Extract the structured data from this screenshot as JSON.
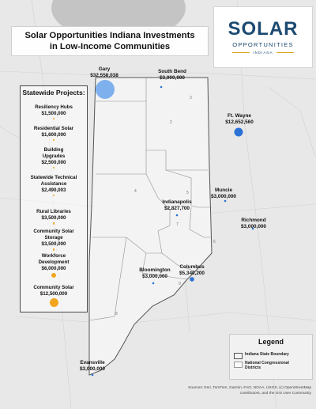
{
  "title": {
    "line1": "Solar Opportunities Indiana Investments",
    "line2": "in Low-Income Communities"
  },
  "logo": {
    "word1": "SOLAR",
    "word2": "OPPORTUNITIES",
    "word3": "INDIANA",
    "color": "#1c4a72",
    "accent": "#d9a21e"
  },
  "statewide": {
    "title": "Statewide Projects:",
    "projects": [
      {
        "name": "Resiliency Hubs",
        "amount": "$1,500,000",
        "value": 1500000
      },
      {
        "name": "Residential Solar",
        "amount": "$1,600,000",
        "value": 1600000
      },
      {
        "name": "Building Upgrades",
        "amount": "$2,500,000",
        "value": 2500000
      },
      {
        "name": "Statewide Technical Assistance",
        "amount": "$2,490,003",
        "value": 2490003
      },
      {
        "name": "Rural Libraries",
        "amount": "$3,500,000",
        "value": 3500000
      },
      {
        "name": "Community Solar Storage",
        "amount": "$3,500,000",
        "value": 3500000
      },
      {
        "name": "Workforce Development",
        "amount": "$6,000,000",
        "value": 6000000
      },
      {
        "name": "Community Solar",
        "amount": "$12,500,000",
        "value": 12500000
      }
    ],
    "dot_color": "#f2a51c"
  },
  "cities": [
    {
      "name": "Gary",
      "amount": "$32,558,038",
      "value": 32558038
    },
    {
      "name": "South Bend",
      "amount": "$3,000,000",
      "value": 3000000
    },
    {
      "name": "Ft. Wayne",
      "amount": "$12,652,560",
      "value": 12652560
    },
    {
      "name": "Muncie",
      "amount": "$3,000,000",
      "value": 3000000
    },
    {
      "name": "Richmond",
      "amount": "$3,000,000",
      "value": 3000000
    },
    {
      "name": "Indianapolis",
      "amount": "$2,827,700",
      "value": 2827700
    },
    {
      "name": "Columbus",
      "amount": "$5,340,200",
      "value": 5340200
    },
    {
      "name": "Bloomington",
      "amount": "$3,000,000",
      "value": 3000000
    },
    {
      "name": "Evansville",
      "amount": "$3,000,000",
      "value": 3000000
    }
  ],
  "city_dot_color": "#2b72d6",
  "legend": {
    "title": "Legend",
    "items": [
      {
        "label": "Indiana State Boundary"
      },
      {
        "label": "National Congressional Districts"
      }
    ]
  },
  "sources": "Sources: Esri, TomTom, Garmin, FAO, NOAA, USGS, (c) OpenStreetMap contributors, and the GIS User Community",
  "district_numbers": [
    "1",
    "2",
    "3",
    "4",
    "5",
    "6",
    "7",
    "8",
    "9"
  ]
}
